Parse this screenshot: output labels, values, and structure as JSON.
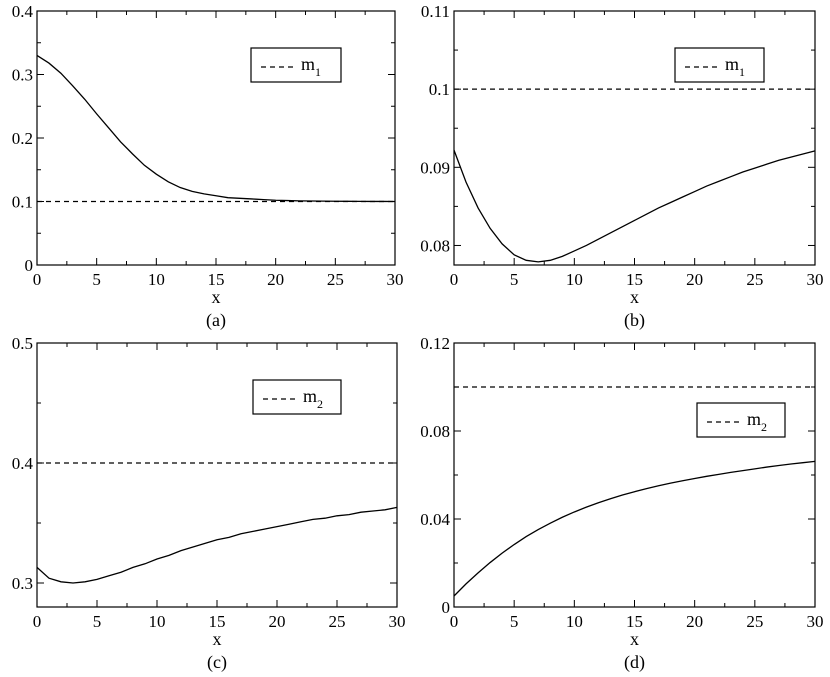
{
  "chart_data": [
    {
      "type": "line",
      "panel_label": "(a)",
      "xlabel": "x",
      "ylabel": "",
      "xlim": [
        0,
        30
      ],
      "ylim": [
        0,
        0.4
      ],
      "xticks": [
        0,
        5,
        10,
        15,
        20,
        25,
        30
      ],
      "xtick_labels": [
        "0",
        "5",
        "10",
        "15",
        "20",
        "25",
        "30"
      ],
      "yticks": [
        0,
        0.1,
        0.2,
        0.3,
        0.4
      ],
      "ytick_labels": [
        "0",
        "0.1",
        "0.2",
        "0.3",
        "0.4"
      ],
      "legend": {
        "position": "top-right",
        "entries": [
          {
            "label": "m",
            "sub": "1",
            "style": "dashed"
          }
        ]
      },
      "series": [
        {
          "style": "solid",
          "x": [
            0,
            1,
            2,
            3,
            4,
            5,
            6,
            7,
            8,
            9,
            10,
            11,
            12,
            13,
            14,
            15,
            16,
            17,
            18,
            19,
            20,
            21,
            22,
            23,
            24,
            25,
            26,
            27,
            28,
            29,
            30
          ],
          "y": [
            0.33,
            0.318,
            0.302,
            0.282,
            0.261,
            0.238,
            0.216,
            0.194,
            0.175,
            0.157,
            0.143,
            0.131,
            0.122,
            0.116,
            0.112,
            0.109,
            0.106,
            0.105,
            0.104,
            0.103,
            0.102,
            0.1015,
            0.101,
            0.1008,
            0.1006,
            0.1004,
            0.1003,
            0.1002,
            0.1001,
            0.1001,
            0.1
          ]
        },
        {
          "name": "m1",
          "style": "dashed",
          "x": [
            0,
            30
          ],
          "y": [
            0.1,
            0.1
          ]
        }
      ]
    },
    {
      "type": "line",
      "panel_label": "(b)",
      "xlabel": "x",
      "ylabel": "",
      "xlim": [
        0,
        30
      ],
      "ylim": [
        0.0775,
        0.11
      ],
      "xticks": [
        0,
        5,
        10,
        15,
        20,
        25,
        30
      ],
      "xtick_labels": [
        "0",
        "5",
        "10",
        "15",
        "20",
        "25",
        "30"
      ],
      "yticks": [
        0.08,
        0.09,
        0.1,
        0.11
      ],
      "ytick_labels": [
        "0.08",
        "0.09",
        "0.1",
        "0.11"
      ],
      "legend": {
        "position": "top-right",
        "entries": [
          {
            "label": "m",
            "sub": "1",
            "style": "dashed"
          }
        ]
      },
      "series": [
        {
          "style": "solid",
          "x": [
            0,
            1,
            2,
            3,
            4,
            5,
            6,
            7,
            8,
            9,
            10,
            11,
            12,
            13,
            14,
            15,
            16,
            17,
            18,
            19,
            20,
            21,
            22,
            23,
            24,
            25,
            26,
            27,
            28,
            29,
            30
          ],
          "y": [
            0.0922,
            0.0881,
            0.0848,
            0.0822,
            0.0802,
            0.0788,
            0.0781,
            0.0779,
            0.0781,
            0.0786,
            0.0793,
            0.08,
            0.0808,
            0.0816,
            0.0824,
            0.0832,
            0.084,
            0.0848,
            0.0855,
            0.0862,
            0.0869,
            0.0876,
            0.0882,
            0.0888,
            0.0894,
            0.0899,
            0.0904,
            0.0909,
            0.0913,
            0.0917,
            0.0921
          ]
        },
        {
          "name": "m1",
          "style": "dashed",
          "x": [
            0,
            30
          ],
          "y": [
            0.1,
            0.1
          ]
        }
      ]
    },
    {
      "type": "line",
      "panel_label": "(c)",
      "xlabel": "x",
      "ylabel": "",
      "xlim": [
        0,
        30
      ],
      "ylim": [
        0.28,
        0.5
      ],
      "xticks": [
        0,
        5,
        10,
        15,
        20,
        25,
        30
      ],
      "xtick_labels": [
        "0",
        "5",
        "10",
        "15",
        "20",
        "25",
        "30"
      ],
      "yticks": [
        0.3,
        0.4,
        0.5
      ],
      "ytick_labels": [
        "0.3",
        "0.4",
        "0.5"
      ],
      "legend": {
        "position": "top-right",
        "entries": [
          {
            "label": "m",
            "sub": "2",
            "style": "dashed"
          }
        ]
      },
      "series": [
        {
          "style": "solid",
          "x": [
            0,
            1,
            2,
            3,
            4,
            5,
            6,
            7,
            8,
            9,
            10,
            11,
            12,
            13,
            14,
            15,
            16,
            17,
            18,
            19,
            20,
            21,
            22,
            23,
            24,
            25,
            26,
            27,
            28,
            29,
            30
          ],
          "y": [
            0.313,
            0.304,
            0.301,
            0.3,
            0.301,
            0.303,
            0.306,
            0.309,
            0.313,
            0.316,
            0.32,
            0.323,
            0.327,
            0.33,
            0.333,
            0.336,
            0.338,
            0.341,
            0.343,
            0.345,
            0.347,
            0.349,
            0.351,
            0.353,
            0.354,
            0.356,
            0.357,
            0.359,
            0.36,
            0.361,
            0.363
          ]
        },
        {
          "name": "m2",
          "style": "dashed",
          "x": [
            0,
            30
          ],
          "y": [
            0.4,
            0.4
          ]
        }
      ]
    },
    {
      "type": "line",
      "panel_label": "(d)",
      "xlabel": "x",
      "ylabel": "",
      "xlim": [
        0,
        30
      ],
      "ylim": [
        0,
        0.12
      ],
      "xticks": [
        0,
        5,
        10,
        15,
        20,
        25,
        30
      ],
      "xtick_labels": [
        "0",
        "5",
        "10",
        "15",
        "20",
        "25",
        "30"
      ],
      "yticks": [
        0,
        0.04,
        0.08,
        0.12
      ],
      "ytick_labels": [
        "0",
        "0.04",
        "0.08",
        "0.12"
      ],
      "legend": {
        "position": "top-right",
        "entries": [
          {
            "label": "m",
            "sub": "2",
            "style": "dashed"
          }
        ]
      },
      "series": [
        {
          "style": "solid",
          "x": [
            0,
            1,
            2,
            3,
            4,
            5,
            6,
            7,
            8,
            9,
            10,
            11,
            12,
            13,
            14,
            15,
            16,
            17,
            18,
            19,
            20,
            21,
            22,
            23,
            24,
            25,
            26,
            27,
            28,
            29,
            30
          ],
          "y": [
            0.005,
            0.0105,
            0.0155,
            0.0202,
            0.0245,
            0.0284,
            0.032,
            0.0352,
            0.0381,
            0.0408,
            0.0432,
            0.0454,
            0.0474,
            0.0492,
            0.0509,
            0.0524,
            0.0538,
            0.0551,
            0.0563,
            0.0574,
            0.0584,
            0.0594,
            0.0603,
            0.0612,
            0.062,
            0.0628,
            0.0636,
            0.0643,
            0.065,
            0.0656,
            0.0662
          ]
        },
        {
          "name": "m2",
          "style": "dashed",
          "x": [
            0,
            30
          ],
          "y": [
            0.1,
            0.1
          ]
        }
      ]
    }
  ]
}
